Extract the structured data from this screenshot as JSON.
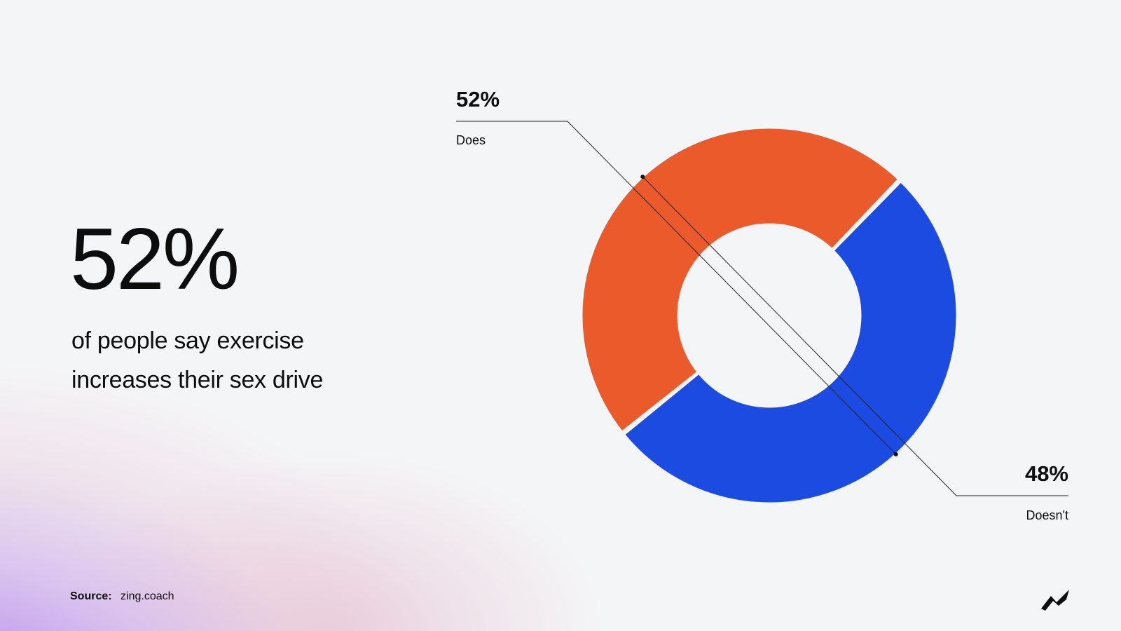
{
  "headline": "52%",
  "subheadline": "of people say exercise increases their sex drive",
  "source": {
    "label": "Source:",
    "value": "zing.coach"
  },
  "logo": {
    "icon": "zing-logo-icon"
  },
  "colors": {
    "does": "#1c4be2",
    "doesnt": "#ea5a2a",
    "text": "#0d0d0d",
    "background": "#f4f5f7"
  },
  "chart_data": {
    "type": "pie",
    "variant": "donut",
    "categories": [
      "Does",
      "Doesn't"
    ],
    "values": [
      52,
      48
    ],
    "data_labels": [
      "52%",
      "48%"
    ],
    "colors": [
      "#1c4be2",
      "#ea5a2a"
    ]
  }
}
